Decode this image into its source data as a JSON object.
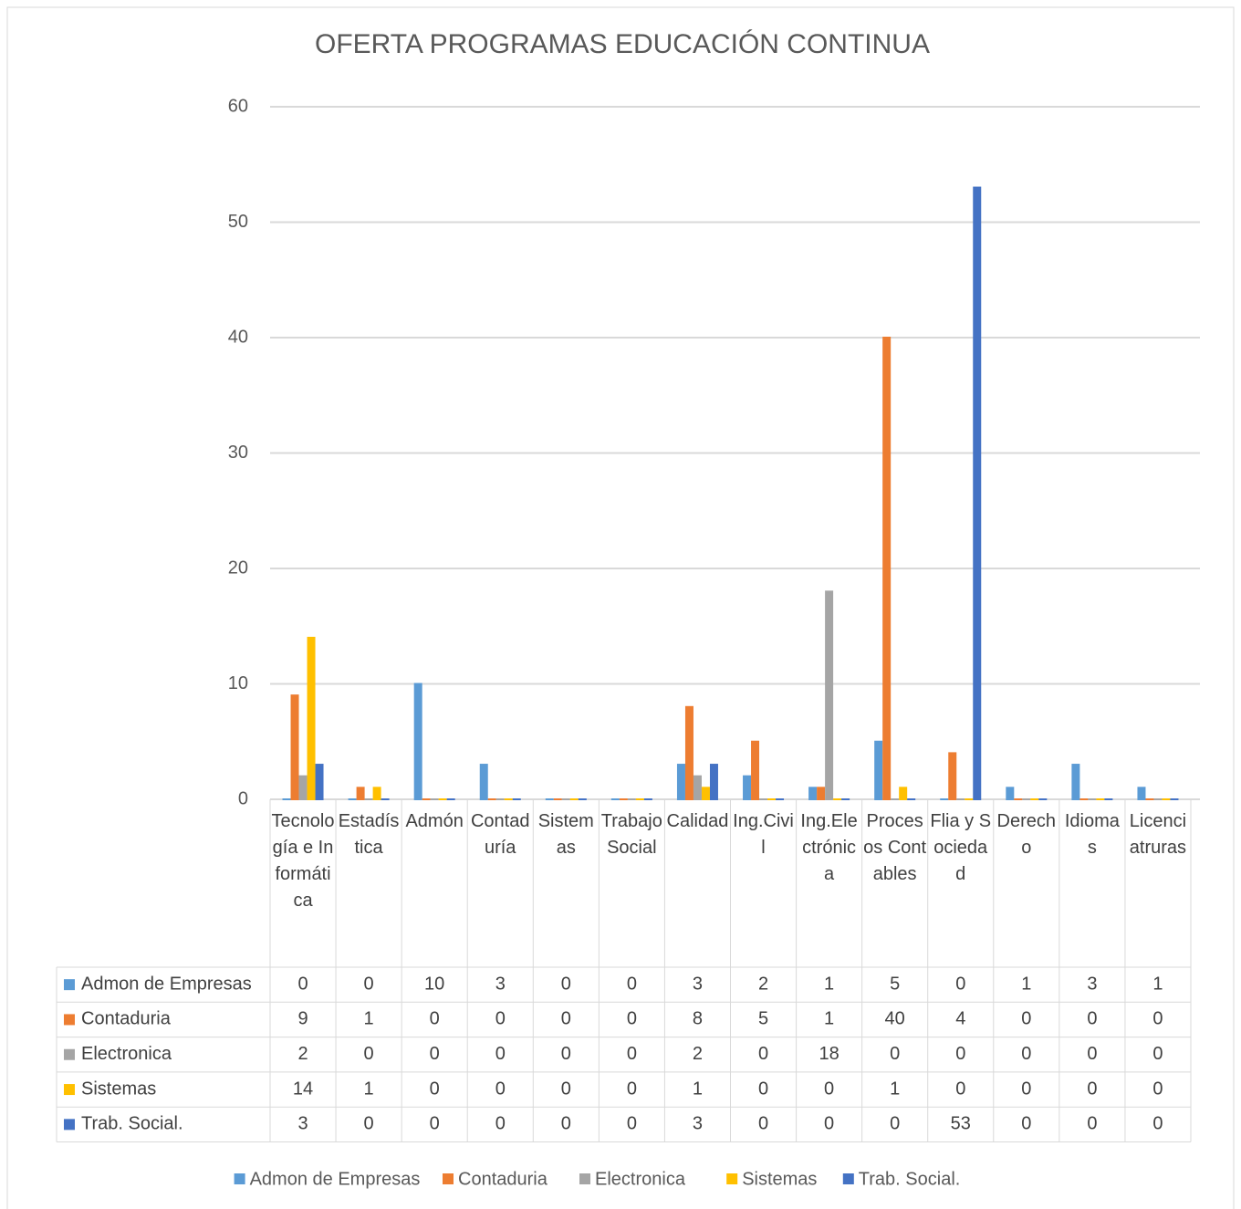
{
  "chart_data": {
    "type": "bar",
    "title": "OFERTA PROGRAMAS EDUCACIÓN CONTINUA",
    "categories": [
      "Tecnología e Informática",
      "Estadística",
      "Admón",
      "Contaduría",
      "Sistemas",
      "Trabajo Social",
      "Calidad",
      "Ing.Civil",
      "Ing.Electrónica",
      "Procesos Contables",
      "Flia y Sociedad",
      "Derecho",
      "Idiomas",
      "Licenciatruras"
    ],
    "series": [
      {
        "name": "Admon de Empresas",
        "color": "#5b9bd5",
        "values": [
          0,
          0,
          10,
          3,
          0,
          0,
          3,
          2,
          1,
          5,
          0,
          1,
          3,
          1
        ]
      },
      {
        "name": "Contaduria",
        "color": "#ed7d31",
        "values": [
          9,
          1,
          0,
          0,
          0,
          0,
          8,
          5,
          1,
          40,
          4,
          0,
          0,
          0
        ]
      },
      {
        "name": "Electronica",
        "color": "#a5a5a5",
        "values": [
          2,
          0,
          0,
          0,
          0,
          0,
          2,
          0,
          18,
          0,
          0,
          0,
          0,
          0
        ]
      },
      {
        "name": "Sistemas",
        "color": "#ffc000",
        "values": [
          14,
          1,
          0,
          0,
          0,
          0,
          1,
          0,
          0,
          1,
          0,
          0,
          0,
          0
        ]
      },
      {
        "name": "Trab. Social.",
        "color": "#4472c4",
        "values": [
          3,
          0,
          0,
          0,
          0,
          0,
          3,
          0,
          0,
          0,
          53,
          0,
          0,
          0
        ]
      }
    ],
    "ylim": [
      0,
      60
    ],
    "yticks": [
      0,
      10,
      20,
      30,
      40,
      50,
      60
    ],
    "grid": true,
    "legend": "bottom",
    "data_table": true
  }
}
